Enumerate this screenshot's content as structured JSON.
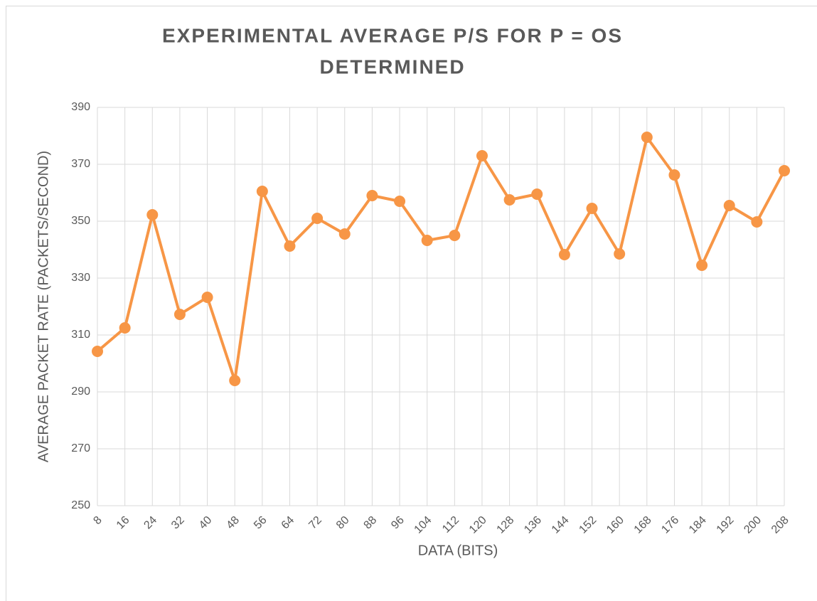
{
  "chart_data": {
    "type": "line",
    "title": [
      "EXPERIMENTAL AVERAGE P/S FOR P = OS",
      "DETERMINED"
    ],
    "x_label": "DATA (BITS)",
    "y_label": "AVERAGE PACKET RATE (PACKETS/SECOND)",
    "categories": [
      8,
      16,
      24,
      32,
      40,
      48,
      56,
      64,
      72,
      80,
      88,
      96,
      104,
      112,
      120,
      128,
      136,
      144,
      152,
      160,
      168,
      176,
      184,
      192,
      200,
      208
    ],
    "values": [
      304.25,
      312.5,
      352.25,
      317.25,
      323.25,
      294,
      360.5,
      341.25,
      351,
      345.5,
      359,
      357,
      343.25,
      345,
      373,
      357.5,
      359.5,
      338.25,
      354.5,
      338.5,
      379.5,
      366.25,
      334.5,
      355.5,
      349.75,
      367.75
    ],
    "color": "#f79646",
    "ylim": [
      250,
      390
    ],
    "yticks": [
      250,
      270,
      290,
      310,
      330,
      350,
      370,
      390
    ],
    "grid": true
  }
}
